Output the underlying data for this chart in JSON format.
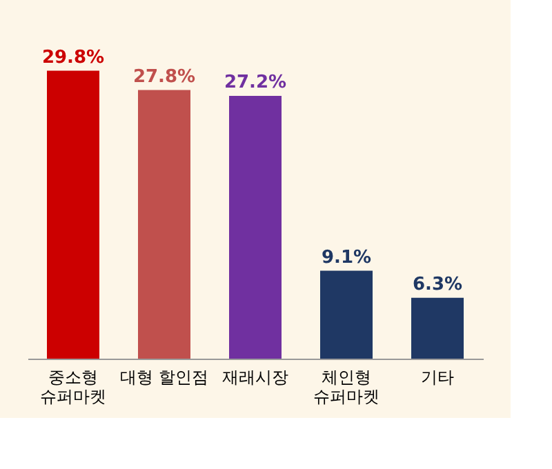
{
  "chart_data": {
    "type": "bar",
    "categories": [
      "중소형\n슈퍼마켓",
      "대형 할인점",
      "재래시장",
      "체인형\n슈퍼마켓",
      "기타"
    ],
    "values": [
      29.8,
      27.8,
      27.2,
      9.1,
      6.3
    ],
    "colors": [
      "#cc0000",
      "#c0504d",
      "#7030a0",
      "#1f3864",
      "#1f3864"
    ],
    "value_labels": [
      "29.8%",
      "27.8%",
      "27.2%",
      "9.1%",
      "6.3%"
    ],
    "relative": false,
    "grid": false
  }
}
